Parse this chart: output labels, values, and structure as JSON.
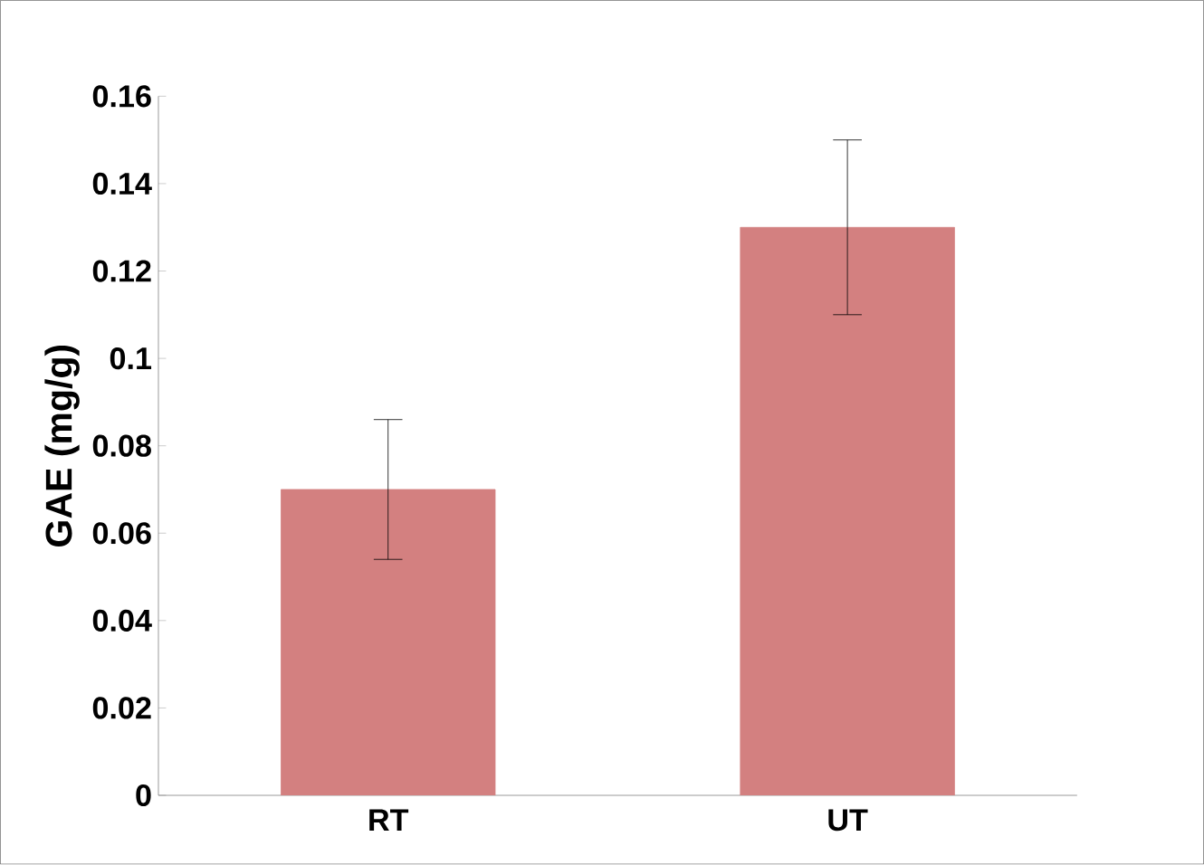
{
  "chart_data": {
    "type": "bar",
    "categories": [
      "RT",
      "UT"
    ],
    "values": [
      0.07,
      0.13
    ],
    "errors": [
      0.016,
      0.02
    ],
    "color": "#d38080",
    "ylabel": "GAE (mg/g)",
    "ylim": [
      0,
      0.16
    ],
    "yticks": [
      0,
      0.02,
      0.04,
      0.06,
      0.08,
      0.1,
      0.12,
      0.14,
      0.16
    ],
    "grid": false
  }
}
